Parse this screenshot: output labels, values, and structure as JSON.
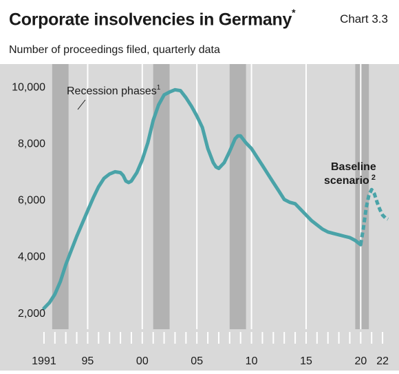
{
  "header": {
    "title": "Corporate insolvencies in Germany",
    "title_marker": "*",
    "chart_number": "Chart 3.3",
    "subtitle": "Number of proceedings filed, quarterly data"
  },
  "chart_data": {
    "type": "line",
    "title": "Corporate insolvencies in Germany",
    "subtitle": "Number of proceedings filed, quarterly data",
    "xlabel": "",
    "ylabel": "",
    "xlim": [
      1990.5,
      2022.75
    ],
    "ylim": [
      1800,
      10400
    ],
    "y_ticks": [
      2000,
      4000,
      6000,
      8000,
      10000
    ],
    "y_tick_labels": [
      "2,000",
      "4,000",
      "6,000",
      "8,000",
      "10,000"
    ],
    "x_ticks": [
      1991,
      1995,
      2000,
      2005,
      2010,
      2015,
      2020,
      2022
    ],
    "x_tick_labels": [
      "1991",
      "95",
      "00",
      "05",
      "10",
      "15",
      "20",
      "22"
    ],
    "grid": "vertical",
    "series": [
      {
        "kind": "actual",
        "color": "#4aa3a8",
        "style": "solid",
        "x": [
          1991.0,
          1991.5,
          1992.0,
          1992.5,
          1993.0,
          1993.5,
          1994.0,
          1994.5,
          1995.0,
          1995.5,
          1996.0,
          1996.5,
          1997.0,
          1997.5,
          1998.0,
          1998.25,
          1998.5,
          1998.75,
          1999.0,
          1999.5,
          2000.0,
          2000.5,
          2001.0,
          2001.5,
          2002.0,
          2002.5,
          2003.0,
          2003.5,
          2004.0,
          2004.5,
          2005.0,
          2005.5,
          2006.0,
          2006.5,
          2006.75,
          2007.0,
          2007.5,
          2008.0,
          2008.5,
          2008.75,
          2009.0,
          2009.5,
          2010.0,
          2010.5,
          2011.0,
          2011.5,
          2012.0,
          2012.5,
          2013.0,
          2013.5,
          2014.0,
          2014.5,
          2015.0,
          2015.5,
          2016.0,
          2016.5,
          2017.0,
          2017.5,
          2018.0,
          2018.5,
          2019.0,
          2019.5,
          2020.0
        ],
        "y": [
          2150,
          2350,
          2650,
          3100,
          3700,
          4200,
          4700,
          5150,
          5600,
          6050,
          6450,
          6750,
          6900,
          6980,
          6950,
          6850,
          6650,
          6600,
          6650,
          6950,
          7400,
          8000,
          8800,
          9350,
          9700,
          9800,
          9880,
          9850,
          9600,
          9300,
          8950,
          8550,
          7800,
          7300,
          7150,
          7100,
          7300,
          7700,
          8150,
          8250,
          8250,
          8000,
          7800,
          7500,
          7200,
          6900,
          6600,
          6300,
          6000,
          5900,
          5850,
          5650,
          5450,
          5250,
          5100,
          4950,
          4850,
          4800,
          4750,
          4700,
          4650,
          4550,
          4400
        ]
      },
      {
        "kind": "projection",
        "name": "Baseline scenario",
        "color": "#4aa3a8",
        "style": "dashed",
        "x": [
          2020.0,
          2020.25,
          2020.5,
          2020.75,
          2021.0,
          2021.25,
          2021.5,
          2021.75,
          2022.0,
          2022.25,
          2022.5
        ],
        "y": [
          4400,
          5000,
          5700,
          6150,
          6350,
          6200,
          5900,
          5650,
          5450,
          5350,
          5300
        ]
      }
    ],
    "recession_phases": [
      [
        1991.75,
        1993.25
      ],
      [
        2001.0,
        2002.5
      ],
      [
        2008.0,
        2009.5
      ],
      [
        2019.5,
        2020.75
      ]
    ],
    "annotations": [
      {
        "text": "Recession phases",
        "marker": "1"
      },
      {
        "text_lines": [
          "Baseline",
          "scenario"
        ],
        "marker": "2"
      }
    ],
    "colors": {
      "plot_background": "#d9d9d9",
      "recession_band": "#b2b2b2",
      "gridline": "#ffffff",
      "line": "#4aa3a8"
    }
  }
}
